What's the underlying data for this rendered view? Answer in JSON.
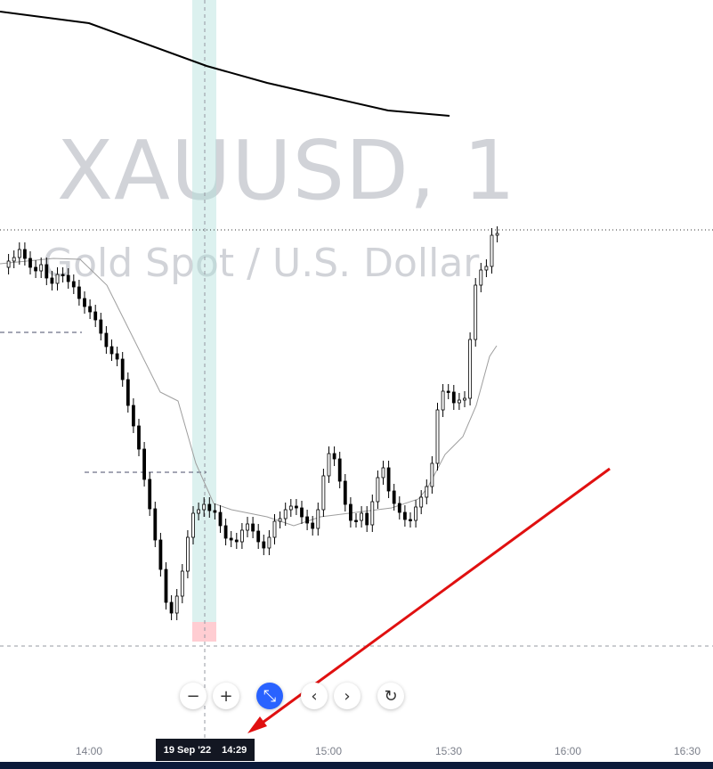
{
  "watermark": {
    "symbol": "XAUUSD, 1",
    "description": "Gold Spot / U.S. Dollar"
  },
  "toolbar": {
    "zoom_out": "−",
    "zoom_in": "+",
    "reset": "⤡",
    "scroll_left": "‹",
    "scroll_right": "›",
    "refresh": "↻"
  },
  "time_axis": {
    "labels": [
      "14:00",
      "15:00",
      "15:30",
      "16:00",
      "16:30"
    ]
  },
  "cursor": {
    "date": "19 Sep '22",
    "time": "14:29"
  },
  "colors": {
    "up": "#ffffff",
    "down": "#000000",
    "sma": "#9e9e9e",
    "slow_ma": "#000000",
    "highlight": "#b2dfdb",
    "stop_zone": "#ffcdd2",
    "arrow": "#e01010"
  },
  "chart_data": {
    "type": "candlestick",
    "price_level_start": 0,
    "closes": [
      300,
      293,
      289,
      280,
      290,
      300,
      304,
      297,
      312,
      318,
      308,
      309,
      316,
      322,
      335,
      344,
      350,
      359,
      374,
      389,
      397,
      403,
      426,
      455,
      478,
      504,
      538,
      571,
      606,
      639,
      676,
      688,
      669,
      641,
      603,
      576,
      572,
      566,
      573,
      575,
      590,
      604,
      606,
      608,
      595,
      588,
      596,
      608,
      615,
      603,
      585,
      582,
      572,
      568,
      570,
      580,
      587,
      593,
      572,
      534,
      509,
      515,
      540,
      566,
      584,
      584,
      576,
      589,
      563,
      536,
      525,
      551,
      565,
      575,
      583,
      584,
      569,
      558,
      546,
      520,
      460,
      439,
      440,
      452,
      449,
      447,
      381,
      320,
      303,
      299,
      264,
      262
    ]
  }
}
